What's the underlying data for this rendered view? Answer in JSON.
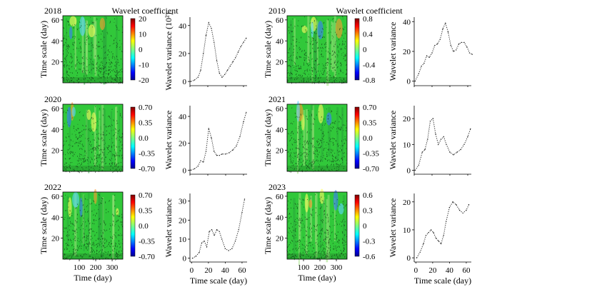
{
  "colors": {
    "wavelet_bg": "#31c83a",
    "colormap": [
      "#00008f",
      "#0000ff",
      "#00ffff",
      "#7fff7f",
      "#ffff00",
      "#ff0000",
      "#7f0000"
    ]
  },
  "chart_data": [
    {
      "type": "heatmap",
      "year_label": "2018",
      "colorbar_title": "Wavelet coefficient",
      "xlabel": "",
      "ylabel": "Time scale (day)",
      "xticks": [],
      "yticks": [
        20,
        40,
        60
      ],
      "colorbar_ticks": [
        "20",
        "10",
        "0",
        "-10",
        "-20"
      ]
    },
    {
      "type": "line",
      "ylabel": "Wavelet variance (10²)",
      "xlabel": "",
      "xlim": [
        0,
        64
      ],
      "ylim": [
        -3,
        46
      ],
      "xticks": [],
      "yticks": [
        0,
        20,
        40
      ],
      "x": [
        1,
        5,
        9,
        12,
        15,
        18,
        21,
        24,
        27,
        30,
        33,
        36,
        39,
        42,
        45,
        48,
        51,
        54,
        57,
        60,
        63
      ],
      "y": [
        0,
        1,
        3,
        8,
        20,
        33,
        42,
        38,
        28,
        15,
        6,
        3,
        5,
        8,
        11,
        14,
        17,
        21,
        25,
        28,
        31
      ]
    },
    {
      "type": "heatmap",
      "year_label": "2019",
      "colorbar_title": "Wavelet coefficient",
      "xlabel": "",
      "ylabel": "Time scale (day)",
      "xticks": [],
      "yticks": [
        20,
        40,
        60
      ],
      "colorbar_ticks": [
        "0.8",
        "0.4",
        "0",
        "-0.4",
        "-0.8"
      ]
    },
    {
      "type": "line",
      "ylabel": "Wavelet variance",
      "xlabel": "",
      "xlim": [
        0,
        64
      ],
      "ylim": [
        -3,
        43
      ],
      "xticks": [],
      "yticks": [
        0,
        20,
        40
      ],
      "x": [
        1,
        5,
        8,
        11,
        14,
        17,
        20,
        23,
        26,
        29,
        32,
        35,
        38,
        41,
        44,
        47,
        50,
        53,
        56,
        59,
        62,
        65
      ],
      "y": [
        0,
        5,
        10,
        12,
        17,
        16,
        19,
        24,
        25,
        28,
        35,
        39,
        33,
        24,
        20,
        21,
        25,
        26,
        26,
        23,
        19,
        18
      ]
    },
    {
      "type": "heatmap",
      "year_label": "2020",
      "colorbar_title": "",
      "xlabel": "",
      "ylabel": "Time scale (day)",
      "xticks": [],
      "yticks": [
        20,
        40,
        60
      ],
      "colorbar_ticks": [
        "0.70",
        "0.35",
        "0.0",
        "-0.35",
        "-0.70"
      ]
    },
    {
      "type": "line",
      "ylabel": "Wavelet variance",
      "xlabel": "",
      "xlim": [
        0,
        64
      ],
      "ylim": [
        -3,
        48
      ],
      "xticks": [],
      "yticks": [
        0,
        20,
        40
      ],
      "x": [
        1,
        5,
        9,
        12,
        15,
        18,
        21,
        24,
        27,
        30,
        33,
        36,
        40,
        44,
        48,
        52,
        56,
        60,
        63
      ],
      "y": [
        0,
        1,
        3,
        7,
        6,
        14,
        31,
        24,
        14,
        11,
        11,
        12,
        12,
        13,
        15,
        18,
        25,
        36,
        43
      ]
    },
    {
      "type": "heatmap",
      "year_label": "2021",
      "colorbar_title": "",
      "xlabel": "",
      "ylabel": "Time scale (day)",
      "xticks": [],
      "yticks": [
        20,
        40,
        60
      ],
      "colorbar_ticks": [
        "0.70",
        "0.35",
        "0.0",
        "-0.35",
        "-0.70"
      ]
    },
    {
      "type": "line",
      "ylabel": "Wavelet variance",
      "xlabel": "",
      "xlim": [
        0,
        64
      ],
      "ylim": [
        -1.5,
        25
      ],
      "xticks": [],
      "yticks": [
        0,
        10,
        20
      ],
      "x": [
        1,
        5,
        9,
        12,
        15,
        18,
        21,
        24,
        27,
        30,
        33,
        36,
        40,
        44,
        48,
        52,
        56,
        60,
        63
      ],
      "y": [
        0,
        2,
        7,
        8,
        12,
        19,
        20,
        14,
        10,
        12,
        13,
        10,
        7,
        6,
        7,
        8,
        10,
        13,
        16
      ]
    },
    {
      "type": "heatmap",
      "year_label": "2022",
      "colorbar_title": "",
      "xlabel": "Time (day)",
      "ylabel": "Time scale (day)",
      "xticks": [
        "100",
        "200",
        "300"
      ],
      "yticks": [
        20,
        40,
        60
      ],
      "colorbar_ticks": [
        "0.70",
        "0.35",
        "0.0",
        "-0.35",
        "-0.70"
      ]
    },
    {
      "type": "line",
      "ylabel": "Wavelet variance",
      "xlabel": "Time scale (day)",
      "xlim": [
        -2,
        66
      ],
      "ylim": [
        -2,
        34
      ],
      "xticks": [
        0,
        20,
        40,
        60
      ],
      "yticks": [
        0,
        10,
        20,
        30
      ],
      "x": [
        1,
        5,
        9,
        12,
        15,
        18,
        21,
        24,
        27,
        30,
        33,
        36,
        40,
        44,
        48,
        52,
        56,
        60,
        63
      ],
      "y": [
        0,
        1,
        3,
        8,
        9,
        6,
        14,
        15,
        12,
        15,
        14,
        10,
        5,
        4,
        5,
        9,
        15,
        24,
        31
      ]
    },
    {
      "type": "heatmap",
      "year_label": "2023",
      "colorbar_title": "",
      "xlabel": "Time (day)",
      "ylabel": "Time scale (day)",
      "xticks": [
        "100",
        "200",
        "300"
      ],
      "yticks": [
        20,
        40,
        60
      ],
      "colorbar_ticks": [
        "0.6",
        "0.3",
        "0",
        "-0.3",
        "-0.6"
      ]
    },
    {
      "type": "line",
      "ylabel": "Wavelet variance",
      "xlabel": "Time scale (day)",
      "xlim": [
        -2,
        66
      ],
      "ylim": [
        -1.5,
        23
      ],
      "xticks": [
        0,
        20,
        40,
        60
      ],
      "yticks": [
        0,
        10,
        20
      ],
      "x": [
        1,
        5,
        9,
        12,
        15,
        18,
        21,
        24,
        27,
        30,
        33,
        36,
        40,
        44,
        48,
        52,
        56,
        60,
        63
      ],
      "y": [
        0,
        2,
        5,
        8,
        9,
        10,
        9,
        7,
        6,
        5,
        8,
        13,
        18,
        20,
        19,
        17,
        16,
        17,
        19
      ]
    }
  ]
}
